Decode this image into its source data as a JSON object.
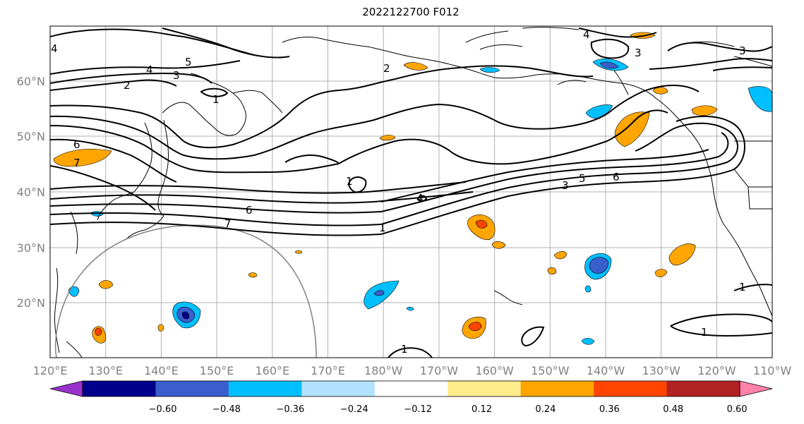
{
  "title": "2022122700 F012",
  "map": {
    "lat_labels": [
      "60°N",
      "50°N",
      "40°N",
      "30°N",
      "20°N"
    ],
    "lon_labels": [
      "120°E",
      "130°E",
      "140°E",
      "150°E",
      "160°E",
      "170°E",
      "180°W",
      "170°W",
      "160°W",
      "150°W",
      "140°W",
      "130°W",
      "120°W",
      "110°W"
    ],
    "contour_labels": [
      "4",
      "5",
      "4",
      "3",
      "2",
      "1",
      "2",
      "4",
      "3",
      "3",
      "6",
      "7",
      "1",
      "6",
      "7",
      "5",
      "3",
      "6",
      "4",
      "1",
      "1",
      "1",
      "1"
    ]
  },
  "colorbar": {
    "ticks": [
      "−0.60",
      "−0.48",
      "−0.36",
      "−0.24",
      "−0.12",
      "0.12",
      "0.24",
      "0.36",
      "0.48",
      "0.60"
    ],
    "colors": [
      "#9932cc",
      "#00008b",
      "#3a5fcd",
      "#00bfff",
      "#b0e2ff",
      "#ffffff",
      "#ffec8b",
      "#ffa500",
      "#ff4500",
      "#b22222",
      "#ff82ab"
    ]
  }
}
